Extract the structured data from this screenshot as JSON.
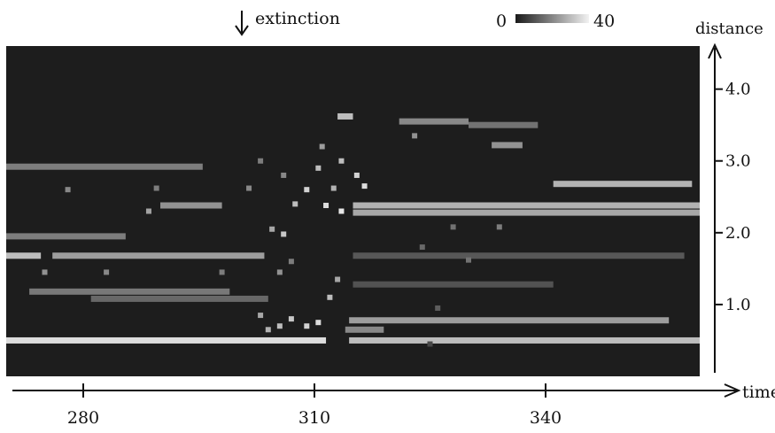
{
  "chart_data": {
    "type": "heatmap",
    "annotation": "extinction",
    "annotation_x": 293,
    "colorbar": {
      "min_label": "0",
      "max_label": "40",
      "range": [
        0,
        40
      ]
    },
    "xlabel": "time",
    "ylabel": "distance",
    "xlim": [
      270,
      360
    ],
    "ylim": [
      0.0,
      4.6
    ],
    "xticks": [
      280,
      310,
      340
    ],
    "yticks": [
      "1.0",
      "2.0",
      "3.0",
      "4.0"
    ],
    "background": "#1d1d1d",
    "segments": [
      {
        "x0": 270,
        "x1": 311.5,
        "y": 0.5,
        "v": 36
      },
      {
        "x0": 314.5,
        "x1": 360,
        "y": 0.5,
        "v": 30
      },
      {
        "x0": 314.5,
        "x1": 356,
        "y": 0.78,
        "v": 24
      },
      {
        "x0": 281,
        "x1": 304,
        "y": 1.08,
        "v": 14
      },
      {
        "x0": 273,
        "x1": 299,
        "y": 1.18,
        "v": 17
      },
      {
        "x0": 270,
        "x1": 274.5,
        "y": 1.68,
        "v": 30
      },
      {
        "x0": 276,
        "x1": 303.5,
        "y": 1.68,
        "v": 24
      },
      {
        "x0": 270,
        "x1": 285.5,
        "y": 1.95,
        "v": 18
      },
      {
        "x0": 270,
        "x1": 295.5,
        "y": 2.92,
        "v": 18
      },
      {
        "x0": 290,
        "x1": 298,
        "y": 2.38,
        "v": 22
      },
      {
        "x0": 315,
        "x1": 360,
        "y": 2.38,
        "v": 28
      },
      {
        "x0": 315,
        "x1": 360,
        "y": 2.28,
        "v": 26
      },
      {
        "x0": 341,
        "x1": 359,
        "y": 2.68,
        "v": 28
      },
      {
        "x0": 315,
        "x1": 358,
        "y": 1.68,
        "v": 11
      },
      {
        "x0": 315,
        "x1": 341,
        "y": 1.28,
        "v": 10
      },
      {
        "x0": 314,
        "x1": 319,
        "y": 0.65,
        "v": 20
      },
      {
        "x0": 321,
        "x1": 330,
        "y": 3.55,
        "v": 20
      },
      {
        "x0": 330,
        "x1": 339,
        "y": 3.5,
        "v": 16
      },
      {
        "x0": 313,
        "x1": 315,
        "y": 3.62,
        "v": 30
      },
      {
        "x0": 333,
        "x1": 337,
        "y": 3.22,
        "v": 22
      }
    ],
    "speckles": [
      {
        "x": 278,
        "y": 2.6,
        "v": 20
      },
      {
        "x": 289.5,
        "y": 2.62,
        "v": 18
      },
      {
        "x": 288.5,
        "y": 2.3,
        "v": 25
      },
      {
        "x": 301.5,
        "y": 2.62,
        "v": 20
      },
      {
        "x": 304.5,
        "y": 2.05,
        "v": 26
      },
      {
        "x": 306,
        "y": 1.98,
        "v": 32
      },
      {
        "x": 307.5,
        "y": 2.4,
        "v": 30
      },
      {
        "x": 309,
        "y": 2.6,
        "v": 34
      },
      {
        "x": 310.5,
        "y": 2.9,
        "v": 30
      },
      {
        "x": 311.5,
        "y": 2.38,
        "v": 36
      },
      {
        "x": 312.5,
        "y": 2.62,
        "v": 28
      },
      {
        "x": 313.5,
        "y": 2.3,
        "v": 38
      },
      {
        "x": 313,
        "y": 1.35,
        "v": 26
      },
      {
        "x": 312,
        "y": 1.1,
        "v": 30
      },
      {
        "x": 310.5,
        "y": 0.75,
        "v": 36
      },
      {
        "x": 309,
        "y": 0.7,
        "v": 34
      },
      {
        "x": 307,
        "y": 0.8,
        "v": 32
      },
      {
        "x": 305.5,
        "y": 0.7,
        "v": 30
      },
      {
        "x": 304,
        "y": 0.65,
        "v": 28
      },
      {
        "x": 303,
        "y": 0.85,
        "v": 26
      },
      {
        "x": 305.5,
        "y": 1.45,
        "v": 22
      },
      {
        "x": 307,
        "y": 1.6,
        "v": 18
      },
      {
        "x": 298,
        "y": 1.45,
        "v": 18
      },
      {
        "x": 283,
        "y": 1.45,
        "v": 20
      },
      {
        "x": 275,
        "y": 1.45,
        "v": 22
      },
      {
        "x": 303,
        "y": 3.0,
        "v": 18
      },
      {
        "x": 306,
        "y": 2.8,
        "v": 20
      },
      {
        "x": 311,
        "y": 3.2,
        "v": 24
      },
      {
        "x": 313.5,
        "y": 3.0,
        "v": 30
      },
      {
        "x": 315.5,
        "y": 2.8,
        "v": 34
      },
      {
        "x": 316.5,
        "y": 2.65,
        "v": 36
      },
      {
        "x": 323,
        "y": 3.35,
        "v": 22
      },
      {
        "x": 328,
        "y": 2.08,
        "v": 16
      },
      {
        "x": 334,
        "y": 2.08,
        "v": 18
      },
      {
        "x": 324,
        "y": 1.8,
        "v": 14
      },
      {
        "x": 330,
        "y": 1.62,
        "v": 16
      },
      {
        "x": 326,
        "y": 0.95,
        "v": 12
      },
      {
        "x": 325,
        "y": 0.45,
        "v": 8
      }
    ]
  }
}
